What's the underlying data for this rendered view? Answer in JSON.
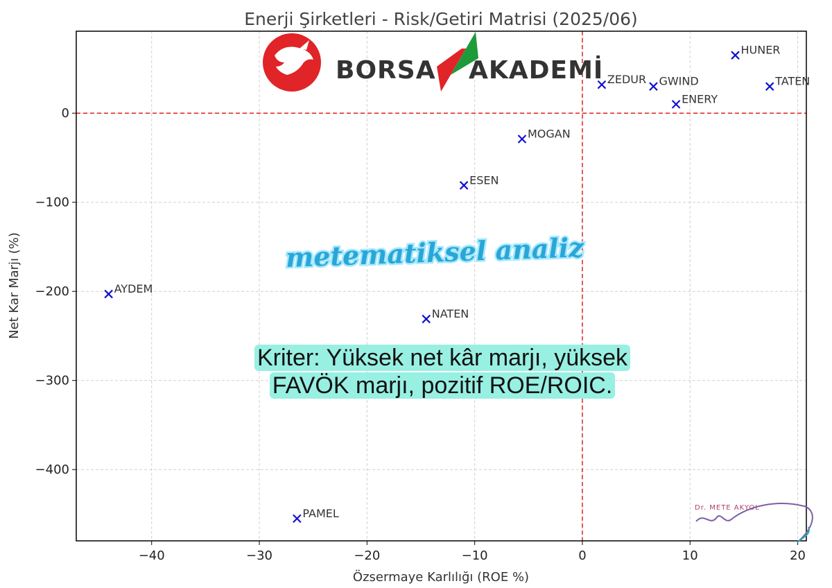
{
  "chart_data": {
    "type": "scatter",
    "title": "Enerji Şirketleri - Risk/Getiri Matrisi (2025/06)",
    "xlabel": "Özsermaye Karlılığı (ROE %)",
    "ylabel": "Net Kar Marjı (%)",
    "xlim": [
      -47,
      20.8
    ],
    "ylim": [
      -480,
      92
    ],
    "xticks": [
      -40,
      -30,
      -20,
      -10,
      0,
      10,
      20
    ],
    "xtick_labels": [
      "−40",
      "−30",
      "−20",
      "−10",
      "0",
      "10",
      "20"
    ],
    "yticks": [
      0,
      -100,
      -200,
      -300,
      -400
    ],
    "ytick_labels": [
      "0",
      "−100",
      "−200",
      "−300",
      "−400"
    ],
    "grid": true,
    "reference_lines": {
      "x": 0,
      "y": 0,
      "color": "#e02020",
      "style": "dashed"
    },
    "marker": "x",
    "marker_color": "#1010d0",
    "points": [
      {
        "label": "HUNER",
        "x": 14.2,
        "y": 65
      },
      {
        "label": "ZEDUR",
        "x": 1.8,
        "y": 32
      },
      {
        "label": "GWIND",
        "x": 6.6,
        "y": 30
      },
      {
        "label": "TATEN",
        "x": 17.4,
        "y": 30
      },
      {
        "label": "ENERY",
        "x": 8.7,
        "y": 10
      },
      {
        "label": "MOGAN",
        "x": -5.6,
        "y": -29
      },
      {
        "label": "ESEN",
        "x": -11.0,
        "y": -81
      },
      {
        "label": "AYDEM",
        "x": -44.0,
        "y": -203
      },
      {
        "label": "NATEN",
        "x": -14.5,
        "y": -231
      },
      {
        "label": "PAMEL",
        "x": -26.5,
        "y": -455
      }
    ]
  },
  "overlays": {
    "brand": {
      "left": "BORSA",
      "right": "AKADEMİ",
      "colors": {
        "red": "#e02427",
        "green": "#1d9a3a"
      }
    },
    "watermark": "metematiksel analiz",
    "criteria": "Kriter: Yüksek net kâr marjı, yüksek FAVÖK marjı, pozitif ROE/ROIC.",
    "signature": "Dr. METE AKYOL"
  }
}
